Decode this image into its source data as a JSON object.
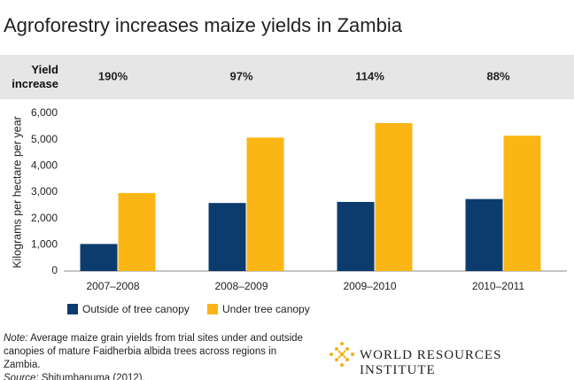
{
  "chart_data": {
    "type": "bar",
    "title": "Agroforestry increases maize yields in Zambia",
    "yield_increase": {
      "label": "Yield increase",
      "labels": [
        "190%",
        "97%",
        "114%",
        "88%"
      ]
    },
    "y_label": "Kilograms per hectare per year",
    "categories": [
      "2007–2008",
      "2008–2009",
      "2009–2010",
      "2010–2011"
    ],
    "series": [
      {
        "name": "Outside of tree canopy",
        "color": "#0c3c6e",
        "values": [
          1030,
          2590,
          2630,
          2740
        ]
      },
      {
        "name": "Under tree canopy",
        "color": "#fbb616",
        "values": [
          2970,
          5080,
          5630,
          5150
        ]
      }
    ],
    "ylim": [
      0,
      6000
    ],
    "yticks": [
      0,
      {
        "value": 1000,
        "label": "1,000"
      },
      {
        "value": 2000,
        "label": "2,000"
      },
      {
        "value": 3000,
        "label": "3,000"
      },
      {
        "value": 4000,
        "label": "4,000"
      },
      {
        "value": 5000,
        "label": "5,000"
      },
      {
        "value": 6000,
        "label": "6,000"
      }
    ],
    "grid": false
  },
  "footer": {
    "note_label": "Note:",
    "note": "Average maize grain yields from trial sites under and outside canopies of mature Faidherbia albida trees across regions in Zambia.",
    "source_label": "Source:",
    "source": "Shitumbanuma (2012).",
    "logo": "WORLD RESOURCES INSTITUTE"
  }
}
